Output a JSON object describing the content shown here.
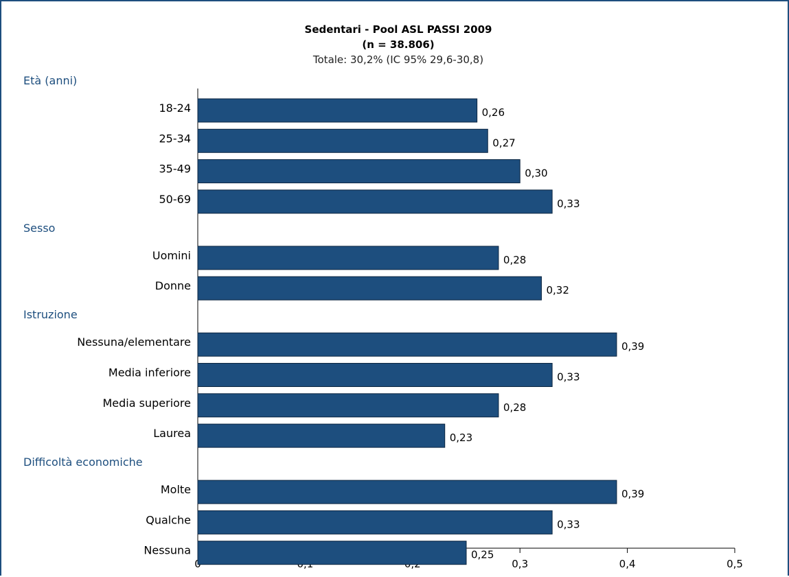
{
  "chart_data": {
    "type": "bar",
    "orientation": "horizontal",
    "title": "Sedentari - Pool ASL PASSI 2009",
    "title_line2": "(n = 38.806)",
    "subtitle": "Totale: 30,2% (IC 95% 29,6-30,8)",
    "xlim": [
      0,
      0.5
    ],
    "x_ticks": [
      {
        "value": 0,
        "label": "0"
      },
      {
        "value": 0.1,
        "label": "0,1"
      },
      {
        "value": 0.2,
        "label": "0,2"
      },
      {
        "value": 0.3,
        "label": "0,3"
      },
      {
        "value": 0.4,
        "label": "0,4"
      },
      {
        "value": 0.5,
        "label": "0,5"
      }
    ],
    "groups": [
      {
        "label": "Età (anni)",
        "items": [
          {
            "category": "18-24",
            "value": 0.26,
            "label": "0,26"
          },
          {
            "category": "25-34",
            "value": 0.27,
            "label": "0,27"
          },
          {
            "category": "35-49",
            "value": 0.3,
            "label": "0,30"
          },
          {
            "category": "50-69",
            "value": 0.33,
            "label": "0,33"
          }
        ]
      },
      {
        "label": "Sesso",
        "items": [
          {
            "category": "Uomini",
            "value": 0.28,
            "label": "0,28"
          },
          {
            "category": "Donne",
            "value": 0.32,
            "label": "0,32"
          }
        ]
      },
      {
        "label": "Istruzione",
        "items": [
          {
            "category": "Nessuna/elementare",
            "value": 0.39,
            "label": "0,39"
          },
          {
            "category": "Media inferiore",
            "value": 0.33,
            "label": "0,33"
          },
          {
            "category": "Media superiore",
            "value": 0.28,
            "label": "0,28"
          },
          {
            "category": "Laurea",
            "value": 0.23,
            "label": "0,23"
          }
        ]
      },
      {
        "label": "Difficoltà economiche",
        "items": [
          {
            "category": "Molte",
            "value": 0.39,
            "label": "0,39"
          },
          {
            "category": "Qualche",
            "value": 0.33,
            "label": "0,33"
          },
          {
            "category": "Nessuna",
            "value": 0.25,
            "label": "0,25"
          }
        ]
      }
    ],
    "grid": false,
    "legend": "none",
    "colors": {
      "bar": "#1d4e7e",
      "group_label": "#1d4e7e",
      "frame": "#1d4e7e"
    }
  }
}
